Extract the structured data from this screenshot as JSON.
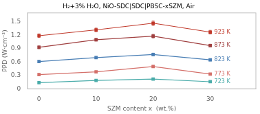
{
  "chart_data": {
    "type": "line",
    "title": "H₂+3% H₂O, NiO-SDC|SDC|PBSC-xSZM, Air",
    "xlabel": "SZM content x  (wt.%)",
    "ylabel": "PPD (W·cm⁻²)",
    "x": [
      0,
      10,
      20,
      30
    ],
    "series": [
      {
        "name": "923 K",
        "color": "#c0392b",
        "values": [
          1.19,
          1.32,
          1.47,
          1.27
        ],
        "yerr": [
          0.04,
          0.04,
          0.05,
          0.04
        ]
      },
      {
        "name": "873 K",
        "color": "#a04040",
        "values": [
          0.93,
          1.1,
          1.18,
          0.97
        ],
        "yerr": [
          0.03,
          0.03,
          0.04,
          0.03
        ]
      },
      {
        "name": "823 K",
        "color": "#4a7fb5",
        "values": [
          0.61,
          0.7,
          0.77,
          0.65
        ],
        "yerr": [
          0.025,
          0.025,
          0.03,
          0.025
        ]
      },
      {
        "name": "773 K",
        "color": "#d4706a",
        "values": [
          0.32,
          0.38,
          0.5,
          0.33
        ],
        "yerr": [
          0.02,
          0.02,
          0.025,
          0.02
        ]
      },
      {
        "name": "723 K",
        "color": "#4aacaa",
        "values": [
          0.14,
          0.19,
          0.22,
          0.16
        ],
        "yerr": [
          0.015,
          0.015,
          0.015,
          0.015
        ]
      }
    ],
    "xlim": [
      -2,
      38
    ],
    "xticks": [
      0,
      10,
      20,
      30
    ],
    "ylim": [
      0,
      1.7
    ],
    "yticks": [
      0,
      0.3,
      0.6,
      0.9,
      1.2,
      1.5
    ],
    "grid": false,
    "marker": "square",
    "line_style": "solid"
  }
}
